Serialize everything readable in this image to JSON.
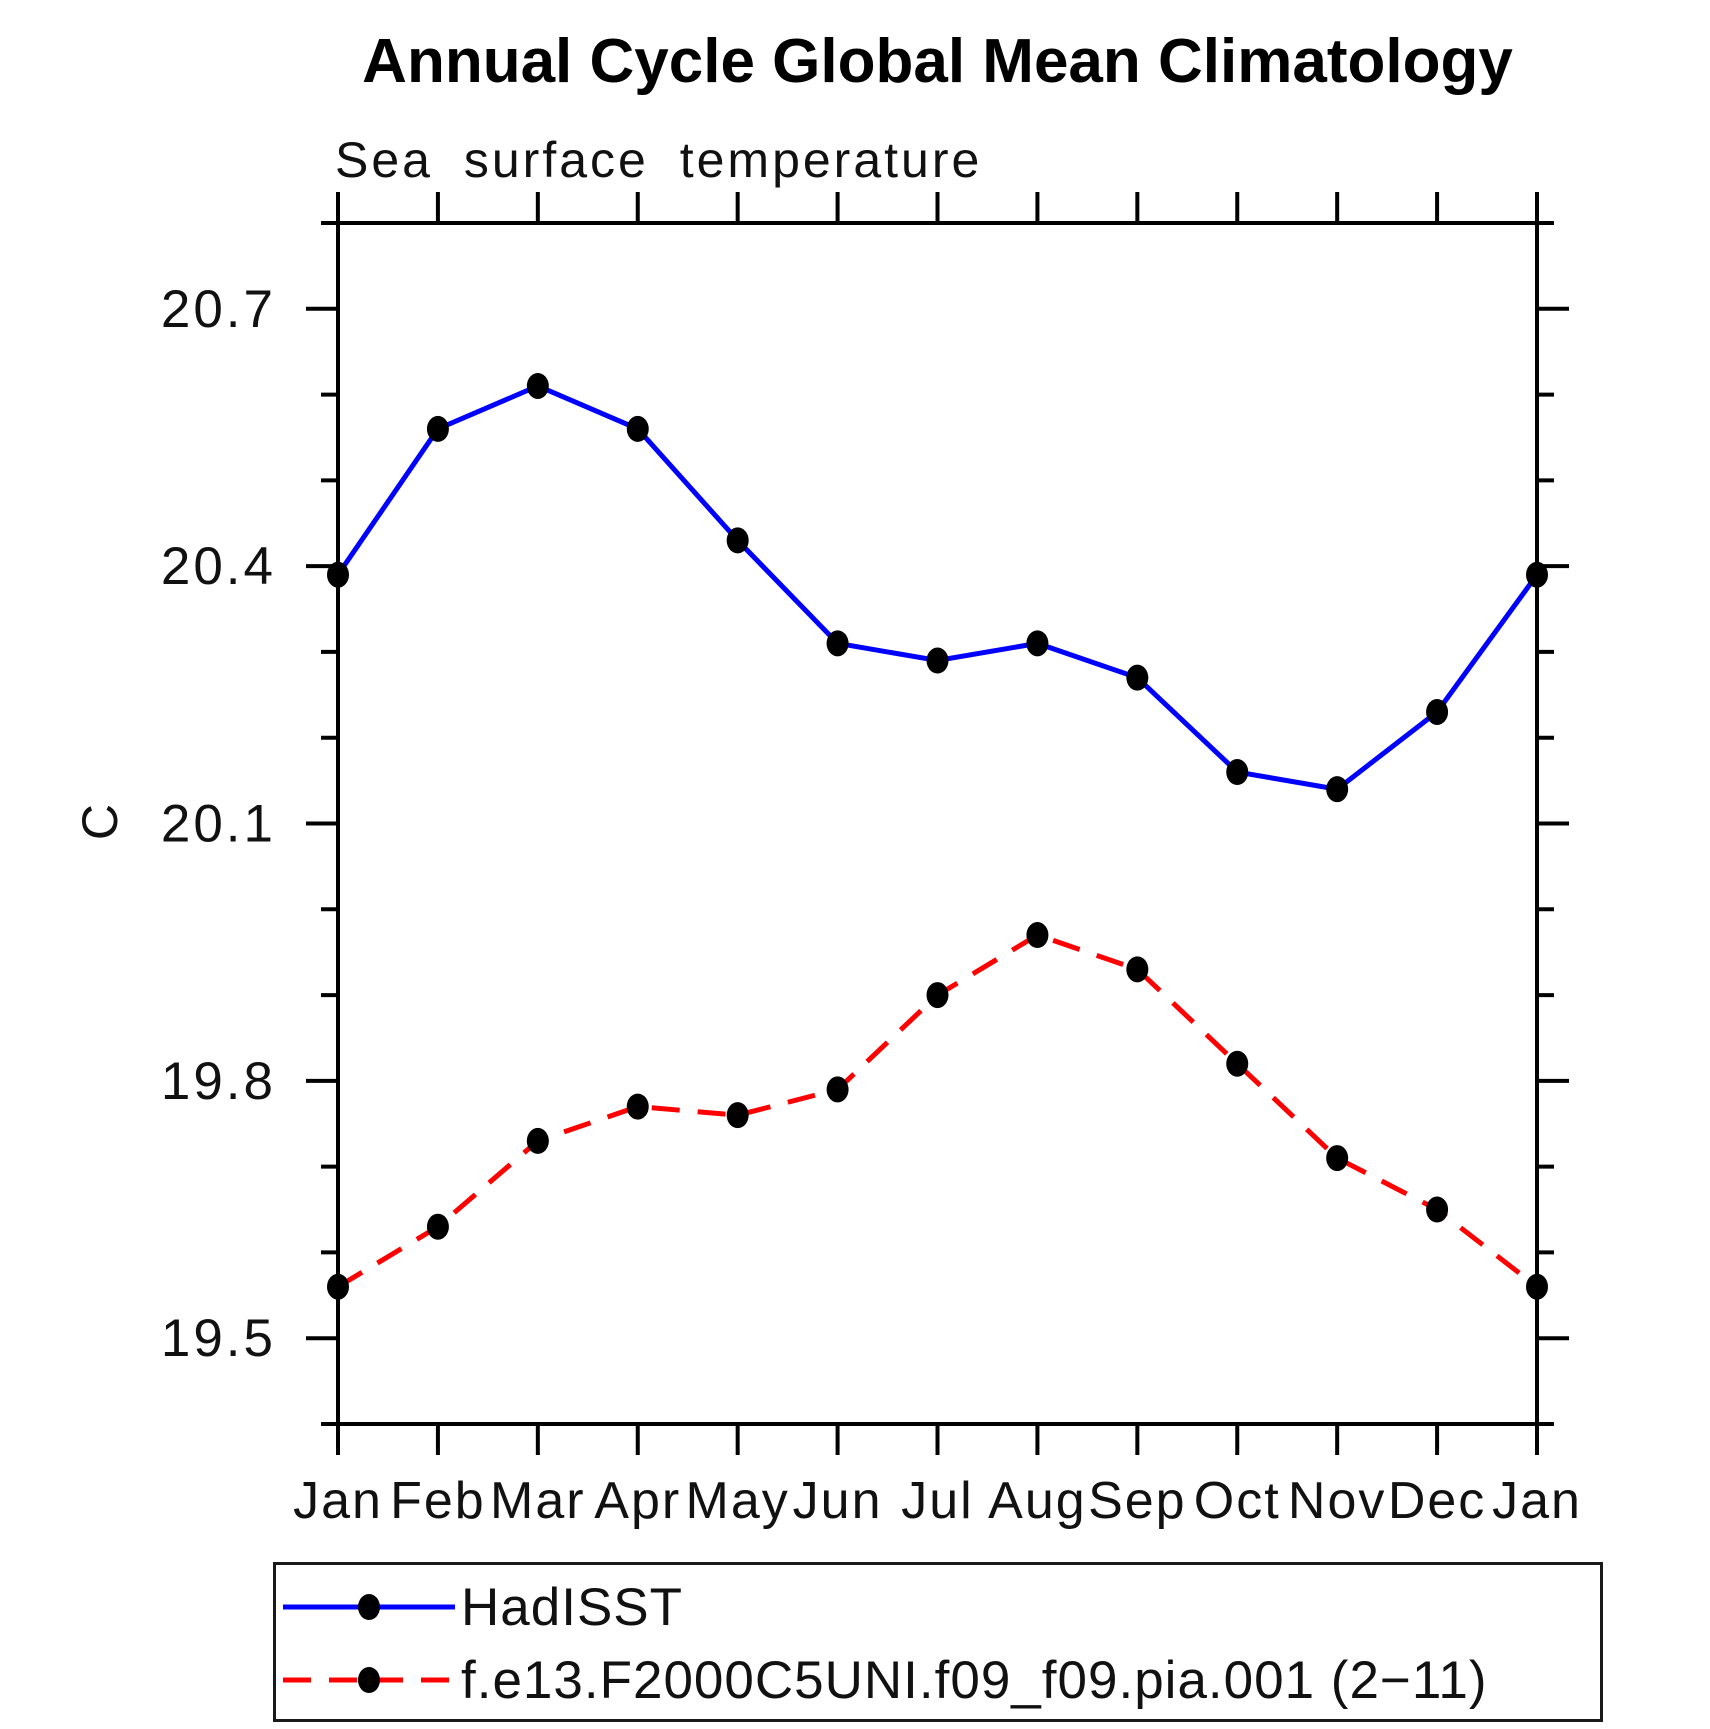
{
  "chart_data": {
    "type": "line",
    "title": "Annual Cycle Global Mean Climatology",
    "subtitle": "Sea surface temperature",
    "ylabel": "C",
    "xlabel": "",
    "categories": [
      "Jan",
      "Feb",
      "Mar",
      "Apr",
      "May",
      "Jun",
      "Jul",
      "Aug",
      "Sep",
      "Oct",
      "Nov",
      "Dec",
      "Jan"
    ],
    "ylim": [
      19.4,
      20.8
    ],
    "y_major_ticks": [
      "19.5",
      "19.8",
      "20.1",
      "20.4",
      "20.7"
    ],
    "y_minor_step": 0.1,
    "grid": false,
    "legend_position": "bottom-left-box",
    "colors": {
      "axis": "#000000",
      "marker": "#000000",
      "hadisst_line": "#0000ff",
      "model_line": "#ff0000"
    },
    "series": [
      {
        "name": "HadISST",
        "color": "#0000ff",
        "line_style": "solid",
        "marker": "filled-ellipse",
        "marker_color": "#000000",
        "values": [
          20.39,
          20.56,
          20.61,
          20.56,
          20.43,
          20.31,
          20.29,
          20.31,
          20.27,
          20.16,
          20.14,
          20.23,
          20.39
        ]
      },
      {
        "name": "f.e13.F2000C5UNI.f09_f09.pia.001 (2−11)",
        "color": "#ff0000",
        "line_style": "dashed",
        "marker": "filled-ellipse",
        "marker_color": "#000000",
        "values": [
          19.56,
          19.63,
          19.73,
          19.77,
          19.76,
          19.79,
          19.9,
          19.97,
          19.93,
          19.82,
          19.71,
          19.65,
          19.56
        ]
      }
    ]
  }
}
